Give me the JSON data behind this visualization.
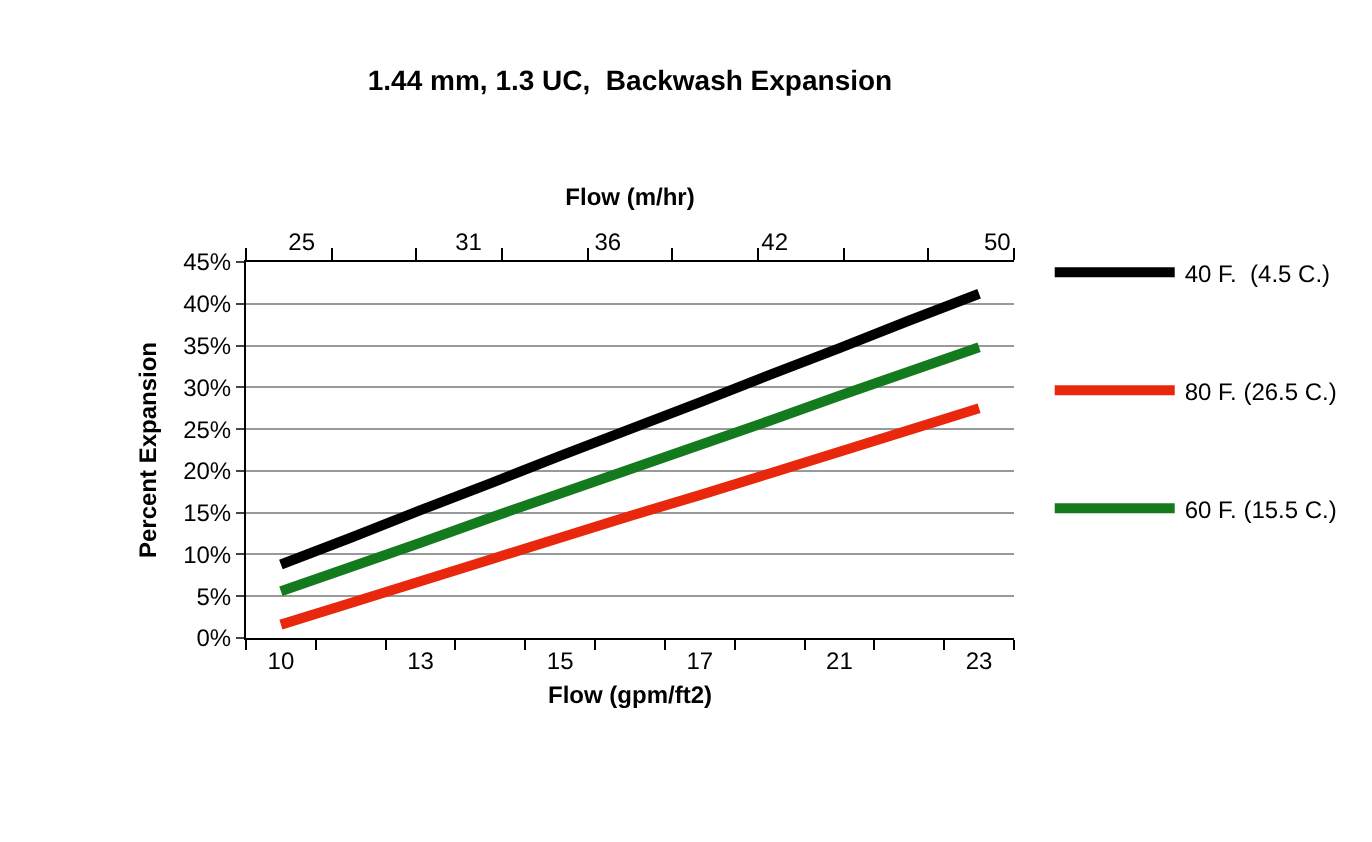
{
  "chart_data": {
    "type": "line",
    "title": "1.44 mm, 1.3 UC,  Backwash Expansion",
    "xlabel": "Flow (gpm/ft2)",
    "ylabel": "Percent Expansion",
    "x2label": "Flow (m/hr)",
    "categories": [
      "10",
      null,
      "13",
      null,
      "15",
      null,
      "17",
      null,
      "21",
      null,
      "23"
    ],
    "series": [
      {
        "name": "40 F.  (4.5 C.)",
        "color": "#000000",
        "values": [
          8.8,
          12.0,
          15.3,
          18.5,
          21.8,
          25.0,
          28.2,
          31.5,
          34.7,
          38.0,
          41.2
        ]
      },
      {
        "name": "80 F. (26.5 C.)",
        "color": "#e8270c",
        "values": [
          1.6,
          4.2,
          6.8,
          9.4,
          12.0,
          14.6,
          17.1,
          19.7,
          22.3,
          24.9,
          27.5
        ]
      },
      {
        "name": "60 F. (15.5 C.)",
        "color": "#147a1e",
        "values": [
          5.6,
          8.5,
          11.4,
          14.4,
          17.3,
          20.2,
          23.1,
          26.0,
          29.0,
          31.9,
          34.8
        ]
      }
    ],
    "ylim": [
      0,
      45
    ],
    "yticks": [
      {
        "value": 0,
        "label": "0%"
      },
      {
        "value": 5,
        "label": "5%"
      },
      {
        "value": 10,
        "label": "10%"
      },
      {
        "value": 15,
        "label": "15%"
      },
      {
        "value": 20,
        "label": "20%"
      },
      {
        "value": 25,
        "label": "25%"
      },
      {
        "value": 30,
        "label": "30%"
      },
      {
        "value": 35,
        "label": "35%"
      },
      {
        "value": 40,
        "label": "40%"
      },
      {
        "value": 45,
        "label": "45%"
      }
    ],
    "x2lim": [
      23.0,
      50.6
    ],
    "x2ticks": [
      {
        "value": 23.0,
        "label": null
      },
      25,
      {
        "value": 26.1,
        "label": null
      },
      {
        "value": 29.1,
        "label": null
      },
      31,
      {
        "value": 32.2,
        "label": null
      },
      {
        "value": 35.3,
        "label": null
      },
      36,
      {
        "value": 38.3,
        "label": null
      },
      {
        "value": 41.4,
        "label": null
      },
      42,
      {
        "value": 44.5,
        "label": null
      },
      {
        "value": 47.5,
        "label": null
      },
      50,
      {
        "value": 50.6,
        "label": null
      }
    ],
    "grid": "y",
    "legend": "right",
    "marker": "none",
    "line_style": "solid"
  }
}
